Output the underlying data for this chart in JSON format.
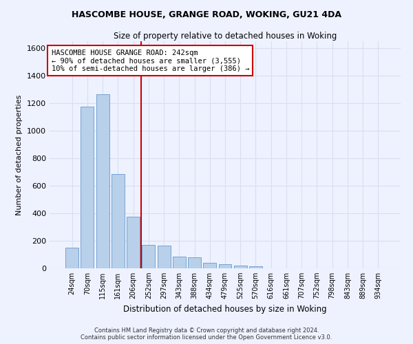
{
  "title_line1": "HASCOMBE HOUSE, GRANGE ROAD, WOKING, GU21 4DA",
  "title_line2": "Size of property relative to detached houses in Woking",
  "xlabel": "Distribution of detached houses by size in Woking",
  "ylabel": "Number of detached properties",
  "footnote": "Contains HM Land Registry data © Crown copyright and database right 2024.\nContains public sector information licensed under the Open Government Licence v3.0.",
  "categories": [
    "24sqm",
    "70sqm",
    "115sqm",
    "161sqm",
    "206sqm",
    "252sqm",
    "297sqm",
    "343sqm",
    "388sqm",
    "434sqm",
    "479sqm",
    "525sqm",
    "570sqm",
    "616sqm",
    "661sqm",
    "707sqm",
    "752sqm",
    "798sqm",
    "843sqm",
    "889sqm",
    "934sqm"
  ],
  "values": [
    148,
    1175,
    1265,
    685,
    375,
    170,
    165,
    85,
    80,
    38,
    30,
    22,
    13,
    0,
    0,
    0,
    0,
    0,
    0,
    0,
    0
  ],
  "bar_color": "#b8d0ea",
  "bar_edge_color": "#6699cc",
  "background_color": "#eef2ff",
  "grid_color": "#d8dff0",
  "vline_x": 4.5,
  "vline_color": "#cc0000",
  "annotation_text": "HASCOMBE HOUSE GRANGE ROAD: 242sqm\n← 90% of detached houses are smaller (3,555)\n10% of semi-detached houses are larger (386) →",
  "annotation_box_color": "#cc0000",
  "ylim": [
    0,
    1650
  ],
  "yticks": [
    0,
    200,
    400,
    600,
    800,
    1000,
    1200,
    1400,
    1600
  ]
}
